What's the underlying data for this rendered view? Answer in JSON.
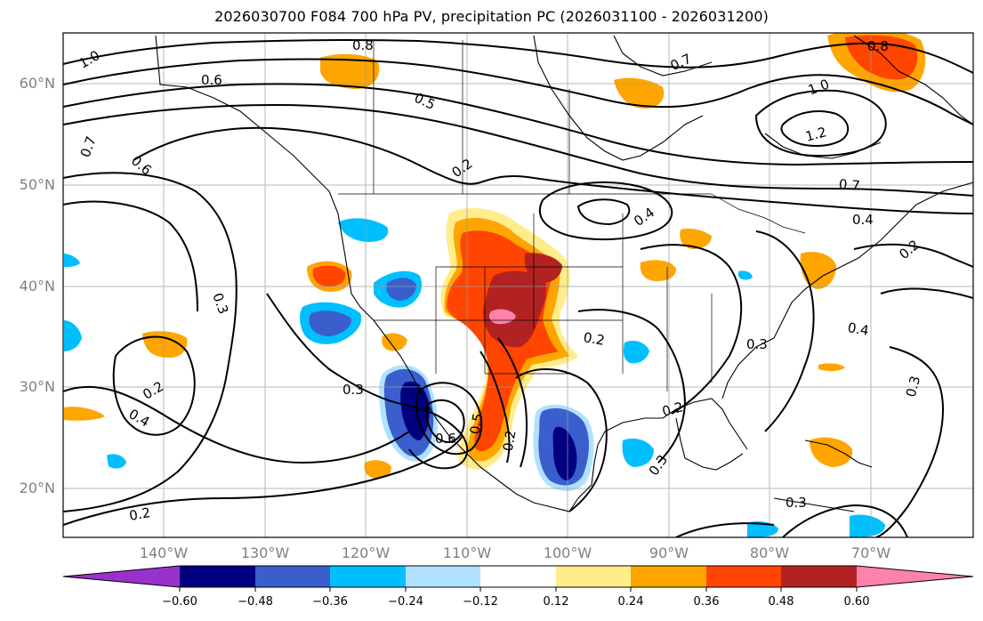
{
  "title": "2026030700 F084 700 hPa PV, precipitation PC (2026031100 - 2026031200)",
  "map": {
    "lat_labels": [
      "60°N",
      "50°N",
      "40°N",
      "30°N",
      "20°N"
    ],
    "lon_labels": [
      "140°W",
      "130°W",
      "120°W",
      "110°W",
      "100°W",
      "90°W",
      "80°W",
      "70°W"
    ],
    "contour_labels": [
      "1.0",
      "0.8",
      "0.6",
      "0.5",
      "0.7",
      "0.6",
      "0.2",
      "0.8",
      "0.7",
      "1.0",
      "1.2",
      "0.7",
      "0.4",
      "0.2",
      "0.4",
      "0.3",
      "0.3",
      "0.2",
      "0.4",
      "0.3",
      "0.2",
      "0.3",
      "0.2",
      "0.3",
      "0.6",
      "0.5",
      "0.2",
      "0.2",
      "0.3",
      "0.4"
    ]
  },
  "colorbar": {
    "tick_labels": [
      "−0.60",
      "−0.48",
      "−0.36",
      "−0.24",
      "−0.12",
      "0.12",
      "0.24",
      "0.36",
      "0.48",
      "0.60"
    ],
    "colors": [
      "#9932cc",
      "#000080",
      "#3a5fcd",
      "#00bfff",
      "#b0e2ff",
      "#ffffff",
      "#ffec8b",
      "#ffa500",
      "#ff4500",
      "#b22222",
      "#ff82ab"
    ]
  }
}
